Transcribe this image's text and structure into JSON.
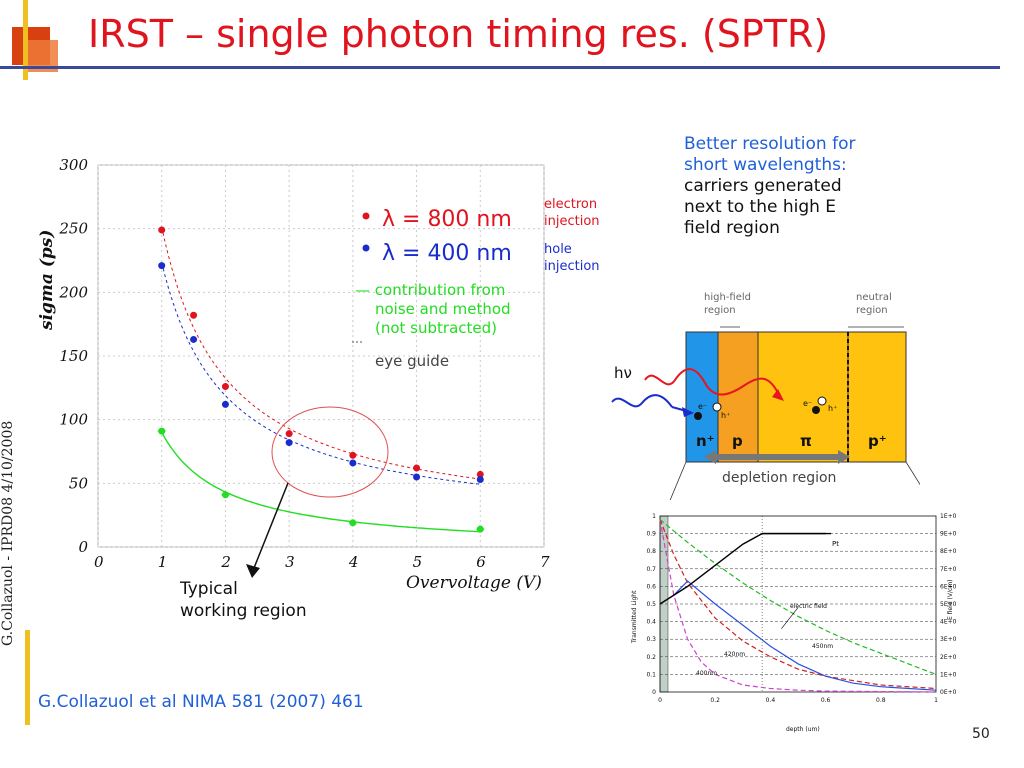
{
  "slide": {
    "title": "IRST – single photon timing res. (SPTR)",
    "page_number": "50",
    "citation": "G.Collazuol et al NIMA 581 (2007) 461",
    "side_text": "G.Collazuol - IPRD08 4/10/2008"
  },
  "notes": {
    "line1": "Better resolution for",
    "line2": "short wavelengths:",
    "line3": "carriers generated",
    "line4": "next to the high E",
    "line5": "field region"
  },
  "colors": {
    "title": "#e0141e",
    "red_series": "#e0141e",
    "blue_series": "#1a2ccc",
    "green_series": "#22dd22",
    "note_blue": "#1f5fd8"
  },
  "chart_data": [
    {
      "type": "scatter",
      "xlabel": "Overvoltage (V)",
      "ylabel": "sigma (ps)",
      "xlim": [
        0,
        7
      ],
      "ylim": [
        0,
        300
      ],
      "x_ticks": [
        "0",
        "1",
        "2",
        "3",
        "4",
        "5",
        "6",
        "7"
      ],
      "y_ticks": [
        "0",
        "50",
        "100",
        "150",
        "200",
        "250",
        "300"
      ],
      "grid": true,
      "series": [
        {
          "name": "λ = 800 nm",
          "note": "electron injection",
          "color": "#e0141e",
          "x": [
            1,
            1.5,
            2,
            3,
            4,
            5,
            6
          ],
          "y": [
            249,
            182,
            126,
            89,
            72,
            62,
            57
          ]
        },
        {
          "name": "λ = 400 nm",
          "note": "hole injection",
          "color": "#1a2ccc",
          "x": [
            1,
            1.5,
            2,
            3,
            4,
            5,
            6
          ],
          "y": [
            221,
            163,
            112,
            82,
            66,
            55,
            53
          ]
        },
        {
          "name": "contribution from noise and method (not subtracted)",
          "color": "#22dd22",
          "x": [
            1,
            2,
            4,
            6
          ],
          "y": [
            91,
            41,
            19,
            14
          ]
        }
      ],
      "legend": {
        "red_label": "λ = 800 nm",
        "red_note_1": "electron",
        "red_note_2": "injection",
        "blue_label": "λ = 400 nm",
        "blue_note_1": "hole",
        "blue_note_2": "injection",
        "green_line1": "— contribution from",
        "green_line2": "noise and method",
        "green_line3": "(not subtracted)",
        "eye_guide": "eye guide"
      },
      "annotation": {
        "line1": "Typical",
        "line2": "working region"
      }
    },
    {
      "type": "diagram",
      "labels": {
        "high_field": "high-field",
        "high_field_2": "region",
        "neutral": "neutral",
        "neutral_2": "region",
        "hv": "hν",
        "n_plus": "n⁺",
        "p": "p",
        "pi": "π",
        "p_plus": "p⁺",
        "depletion": "depletion region",
        "e1": "e⁻",
        "h1": "h⁺",
        "e2": "e⁻",
        "h2": "h⁺"
      }
    },
    {
      "type": "line",
      "xlabel": "depth (um)",
      "ylabel": "Transmitted Light",
      "y2label": "E field (V/cm)",
      "xlim": [
        0,
        1
      ],
      "ylim": [
        0,
        1
      ],
      "x_ticks": [
        "0",
        "0.2",
        "0.4",
        "0.6",
        "0.8",
        "1"
      ],
      "y_ticks": [
        "0",
        "0.1",
        "0.2",
        "0.3",
        "0.4",
        "0.5",
        "0.6",
        "0.7",
        "0.8",
        "0.9",
        "1"
      ],
      "y2_ticks": [
        "0E+00",
        "1E+05",
        "2E+05",
        "3E+05",
        "4E+05",
        "5E+05",
        "6E+05",
        "7E+05",
        "8E+05",
        "9E+05",
        "1E+06"
      ],
      "series": [
        {
          "name": "400nm",
          "color": "#d040d0",
          "x": [
            0,
            0.05,
            0.1,
            0.15,
            0.2,
            0.3,
            0.4,
            0.5,
            0.6,
            1
          ],
          "y": [
            0.98,
            0.55,
            0.3,
            0.17,
            0.1,
            0.04,
            0.02,
            0.01,
            0.005,
            0
          ]
        },
        {
          "name": "420nm",
          "color": "#d02020",
          "x": [
            0,
            0.05,
            0.1,
            0.2,
            0.3,
            0.4,
            0.5,
            0.6,
            0.8,
            1
          ],
          "y": [
            0.98,
            0.78,
            0.62,
            0.42,
            0.29,
            0.2,
            0.13,
            0.09,
            0.04,
            0.02
          ]
        },
        {
          "name": "450nm",
          "color": "#2a50e0",
          "x": [
            0.05,
            0.1,
            0.2,
            0.3,
            0.4,
            0.5,
            0.6,
            0.7,
            0.8,
            1
          ],
          "y": [
            0.55,
            0.63,
            0.5,
            0.38,
            0.26,
            0.16,
            0.09,
            0.05,
            0.03,
            0.01
          ]
        },
        {
          "name": "",
          "color": "#22bb22",
          "x": [
            0,
            0.1,
            0.2,
            0.3,
            0.4,
            0.5,
            0.6,
            0.7,
            0.8,
            1
          ],
          "y": [
            0.98,
            0.85,
            0.73,
            0.62,
            0.52,
            0.43,
            0.35,
            0.28,
            0.22,
            0.1
          ]
        },
        {
          "name": "Pt",
          "color": "#000000",
          "x": [
            0,
            0.1,
            0.2,
            0.3,
            0.37,
            0.37,
            0.6
          ],
          "y": [
            0.5,
            0.6,
            0.72,
            0.84,
            0.9,
            0.9,
            0.9
          ]
        }
      ],
      "annotations": {
        "pt": "Pt",
        "field": "electric field",
        "l450": "450nm",
        "l420": "420nm",
        "l400": "400nm"
      }
    }
  ]
}
